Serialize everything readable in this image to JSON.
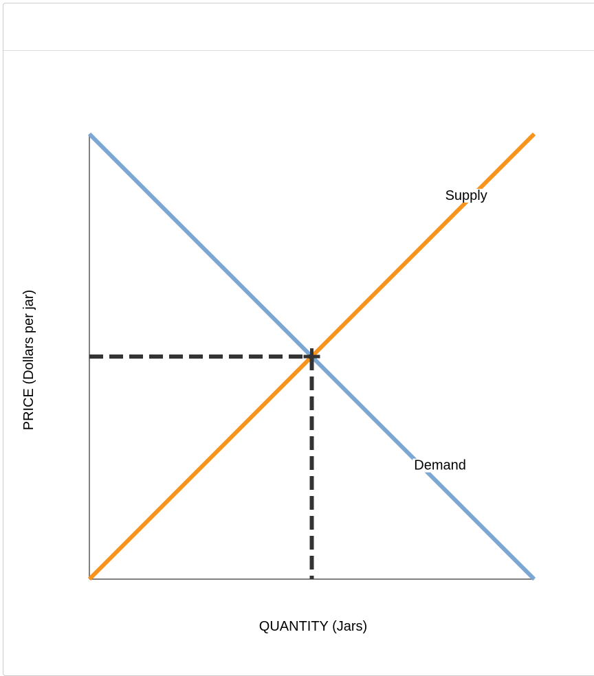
{
  "chart_data": {
    "type": "line",
    "title": "",
    "xlabel": "QUANTITY (Jars)",
    "ylabel": "PRICE (Dollars per jar)",
    "xlim": [
      0,
      100
    ],
    "ylim": [
      0,
      100
    ],
    "grid": false,
    "series": [
      {
        "name": "Supply",
        "color": "#F7941D",
        "x": [
          0,
          100
        ],
        "y": [
          0,
          100
        ]
      },
      {
        "name": "Demand",
        "color": "#7BA7D2",
        "x": [
          0,
          100
        ],
        "y": [
          100,
          0
        ]
      }
    ],
    "equilibrium": {
      "x": 50,
      "y": 50,
      "marker": "plus",
      "guide_color": "#333333",
      "guide_style": "dashed"
    }
  }
}
